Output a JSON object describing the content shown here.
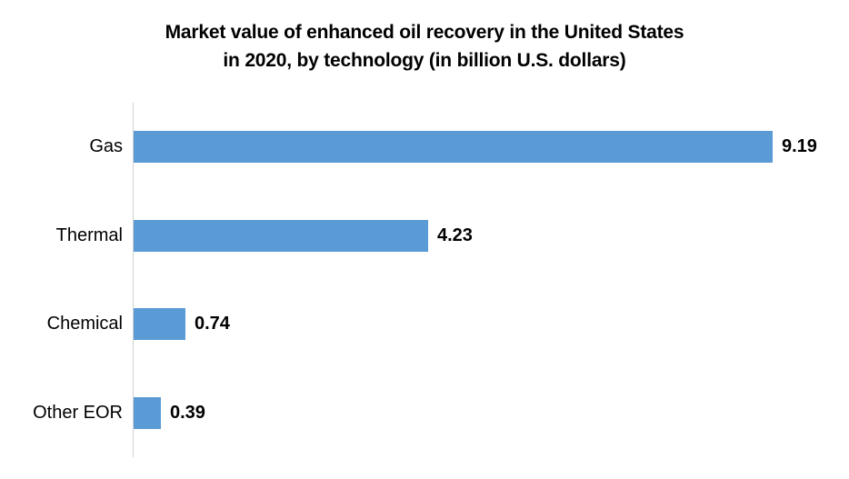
{
  "title": {
    "line1": "Market value of enhanced oil recovery in the United States",
    "line2": "in 2020, by technology (in billion U.S. dollars)"
  },
  "chart_data": {
    "type": "bar",
    "orientation": "horizontal",
    "title": "Market value of enhanced oil recovery in the United States in 2020, by technology (in billion U.S. dollars)",
    "categories": [
      "Gas",
      "Thermal",
      "Chemical",
      "Other EOR"
    ],
    "values": [
      9.19,
      4.23,
      0.74,
      0.39
    ],
    "value_labels": [
      "9.19",
      "4.23",
      "0.74",
      "0.39"
    ],
    "xlabel": "",
    "ylabel": "",
    "xlim": [
      0,
      9.19
    ],
    "grid": false,
    "legend": false,
    "bar_color": "#5B9BD5",
    "axis_line_color": "#D2D2D2",
    "text_color": "#000000"
  }
}
